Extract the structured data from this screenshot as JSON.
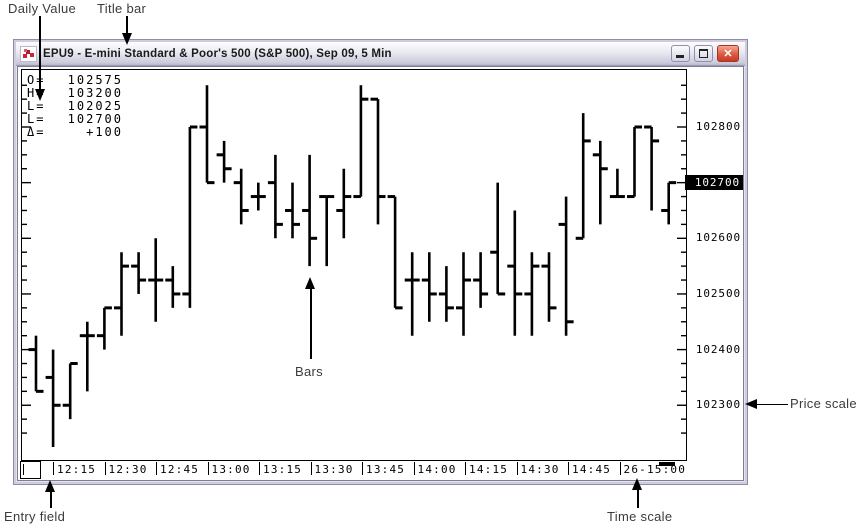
{
  "annotations": {
    "daily_value": "Daily Value",
    "title_bar": "Title bar",
    "bars": "Bars",
    "price_scale": "Price scale",
    "entry_field": "Entry field",
    "time_scale": "Time scale"
  },
  "window": {
    "title": "EPU9 - E-mini Standard & Poor's 500 (S&P 500), Sep 09, 5 Min",
    "buttons": {
      "minimize": "minimize",
      "maximize": "maximize",
      "close": "close"
    }
  },
  "daily_values": [
    {
      "label": "O=",
      "value": "102575"
    },
    {
      "label": "H=",
      "value": "103200"
    },
    {
      "label": "L=",
      "value": "102025"
    },
    {
      "label": "L=",
      "value": "102700"
    },
    {
      "label": "Δ=",
      "value": "+100"
    }
  ],
  "entry_field": {
    "value": ""
  },
  "colors": {
    "chart_ink": "#000000",
    "annotation_text": "#3b3b3b",
    "highlight_bg": "#000000",
    "highlight_text": "#ffffff",
    "close_button": "#c8402c",
    "titlebar_top": "#fdfdfe",
    "titlebar_bottom": "#b9b9cd",
    "icon_red": "#cc2233"
  },
  "chart_data": {
    "type": "bar",
    "subtype": "ohlc",
    "title": "EPU9 - E-mini Standard & Poor's 500 (S&P 500), Sep 09, 5 Min",
    "ylabel": "Price",
    "ylim": [
      102200,
      102900
    ],
    "grid": false,
    "price_axis_labels": [
      102800,
      102700,
      102600,
      102500,
      102400,
      102300
    ],
    "highlighted_price": 102700,
    "last_price": 102700,
    "price_tick_step": 25,
    "time_labels": [
      "12:15",
      "12:30",
      "12:45",
      "13:00",
      "13:15",
      "13:30",
      "13:45",
      "14:00",
      "14:15",
      "14:30",
      "14:45",
      "26-15:00"
    ],
    "bars_per_time_tick": 3,
    "bars_ohlc": [
      [
        102400,
        102425,
        102325,
        102325
      ],
      [
        102350,
        102400,
        102225,
        102300
      ],
      [
        102300,
        102375,
        102275,
        102375
      ],
      [
        102425,
        102450,
        102325,
        102425
      ],
      [
        102425,
        102475,
        102400,
        102475
      ],
      [
        102475,
        102575,
        102425,
        102550
      ],
      [
        102550,
        102575,
        102500,
        102525
      ],
      [
        102525,
        102600,
        102450,
        102525
      ],
      [
        102525,
        102550,
        102475,
        102500
      ],
      [
        102500,
        102800,
        102475,
        102800
      ],
      [
        102800,
        102875,
        102700,
        102700
      ],
      [
        102750,
        102775,
        102700,
        102725
      ],
      [
        102700,
        102725,
        102625,
        102650
      ],
      [
        102675,
        102700,
        102650,
        102675
      ],
      [
        102700,
        102750,
        102600,
        102625
      ],
      [
        102650,
        102700,
        102600,
        102625
      ],
      [
        102650,
        102750,
        102550,
        102600
      ],
      [
        102675,
        102675,
        102550,
        102675
      ],
      [
        102650,
        102725,
        102600,
        102675
      ],
      [
        102675,
        102875,
        102675,
        102850
      ],
      [
        102850,
        102850,
        102625,
        102675
      ],
      [
        102675,
        102675,
        102475,
        102475
      ],
      [
        102525,
        102575,
        102425,
        102525
      ],
      [
        102525,
        102575,
        102450,
        102500
      ],
      [
        102500,
        102550,
        102450,
        102475
      ],
      [
        102475,
        102575,
        102425,
        102525
      ],
      [
        102525,
        102575,
        102475,
        102500
      ],
      [
        102575,
        102700,
        102500,
        102500
      ],
      [
        102550,
        102650,
        102425,
        102500
      ],
      [
        102500,
        102575,
        102425,
        102550
      ],
      [
        102550,
        102575,
        102450,
        102475
      ],
      [
        102625,
        102675,
        102425,
        102450
      ],
      [
        102600,
        102825,
        102600,
        102775
      ],
      [
        102750,
        102775,
        102625,
        102725
      ],
      [
        102675,
        102725,
        102675,
        102675
      ],
      [
        102675,
        102800,
        102675,
        102800
      ],
      [
        102800,
        102800,
        102650,
        102775
      ],
      [
        102650,
        102700,
        102625,
        102700
      ]
    ]
  }
}
